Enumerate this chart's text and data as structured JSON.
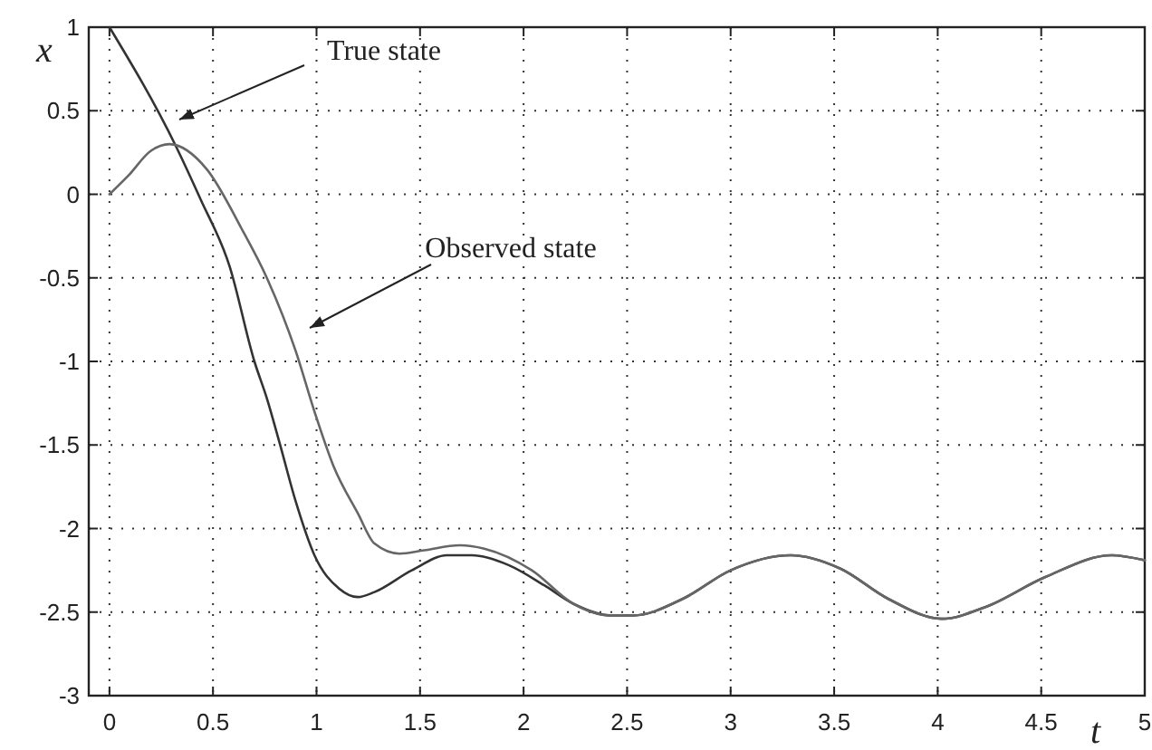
{
  "chart_data": {
    "type": "line",
    "xlabel": "t",
    "ylabel": "x",
    "xlim": [
      -0.1,
      5
    ],
    "ylim": [
      -3,
      1
    ],
    "xticks": [
      0,
      0.5,
      1,
      1.5,
      2,
      2.5,
      3,
      3.5,
      4,
      4.5,
      5
    ],
    "yticks": [
      -3,
      -2.5,
      -2,
      -1.5,
      -1,
      -0.5,
      0,
      0.5,
      1
    ],
    "grid": true,
    "marker": "none",
    "line_style": "solid",
    "series": [
      {
        "color": "#333333",
        "x": [
          0,
          0.32,
          0.44,
          0.58,
          0.7,
          0.76,
          0.82,
          0.9,
          0.99,
          1.11,
          1.2,
          1.28,
          1.46,
          1.63,
          1.75,
          1.93,
          2.1,
          2.24,
          2.42,
          2.53,
          2.77,
          3.0,
          3.29,
          3.53,
          3.76,
          4.02,
          4.23,
          4.52,
          4.84,
          5.0
        ],
        "values": [
          1,
          0.29,
          -0.03,
          -0.43,
          -1.0,
          -1.22,
          -1.48,
          -1.84,
          -2.16,
          -2.36,
          -2.41,
          -2.38,
          -2.25,
          -2.16,
          -2.16,
          -2.22,
          -2.34,
          -2.45,
          -2.52,
          -2.52,
          -2.42,
          -2.25,
          -2.16,
          -2.24,
          -2.42,
          -2.54,
          -2.47,
          -2.29,
          -2.16,
          -2.19
        ]
      },
      {
        "color": "#666666",
        "x": [
          0,
          0.09,
          0.2,
          0.29,
          0.47,
          0.64,
          0.76,
          0.9,
          0.99,
          1.08,
          1.2,
          1.28,
          1.4,
          1.52,
          1.69,
          1.81,
          2.04,
          2.24,
          2.42,
          2.53,
          2.77,
          3.0,
          3.29,
          3.53,
          3.76,
          4.02,
          4.23,
          4.52,
          4.84,
          5.0
        ],
        "values": [
          0,
          0.11,
          0.26,
          0.3,
          0.15,
          -0.21,
          -0.5,
          -0.94,
          -1.3,
          -1.62,
          -1.91,
          -2.09,
          -2.15,
          -2.13,
          -2.1,
          -2.12,
          -2.25,
          -2.45,
          -2.52,
          -2.52,
          -2.42,
          -2.25,
          -2.16,
          -2.24,
          -2.42,
          -2.54,
          -2.47,
          -2.29,
          -2.16,
          -2.19
        ]
      }
    ],
    "annotations": [
      "True state",
      "Observed state"
    ]
  }
}
